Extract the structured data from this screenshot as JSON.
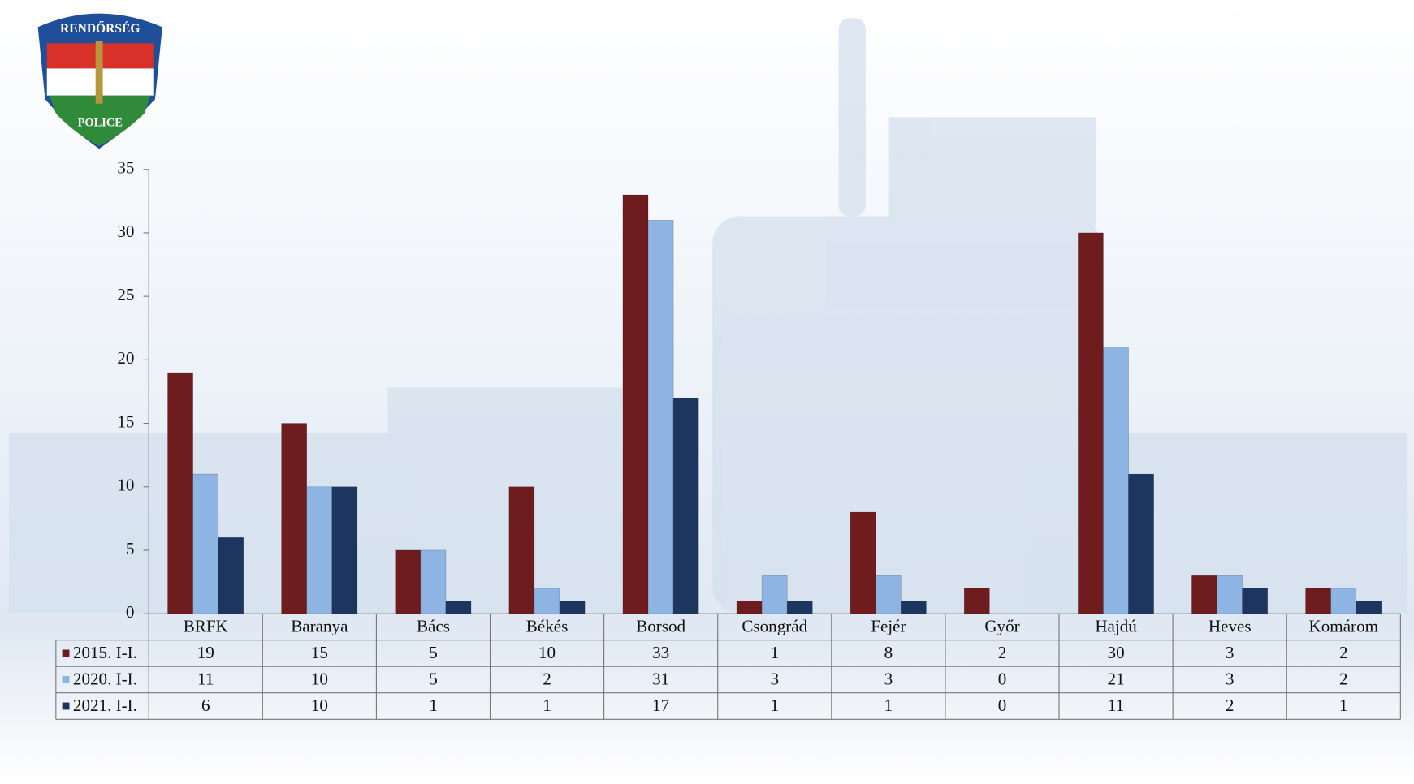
{
  "logo": {
    "top": "RENDŐRSÉG",
    "bottom": "POLICE"
  },
  "chart_data": {
    "type": "bar",
    "categories": [
      "BRFK",
      "Baranya",
      "Bács",
      "Békés",
      "Borsod",
      "Csongrád",
      "Fejér",
      "Győr",
      "Hajdú",
      "Heves",
      "Komárom"
    ],
    "series": [
      {
        "name": "2015. I-I.",
        "color": "#6e1c1e",
        "values": [
          19,
          15,
          5,
          10,
          33,
          1,
          8,
          2,
          30,
          3,
          2
        ]
      },
      {
        "name": "2020. I-I.",
        "color": "#8db4e2",
        "values": [
          11,
          10,
          5,
          2,
          31,
          3,
          3,
          0,
          21,
          3,
          2
        ]
      },
      {
        "name": "2021. I-I.",
        "color": "#1d3660",
        "values": [
          6,
          10,
          1,
          1,
          17,
          1,
          1,
          0,
          11,
          2,
          1
        ]
      }
    ],
    "ylim": [
      0,
      35
    ],
    "yticks": [
      0,
      5,
      10,
      15,
      20,
      25,
      30,
      35
    ]
  }
}
